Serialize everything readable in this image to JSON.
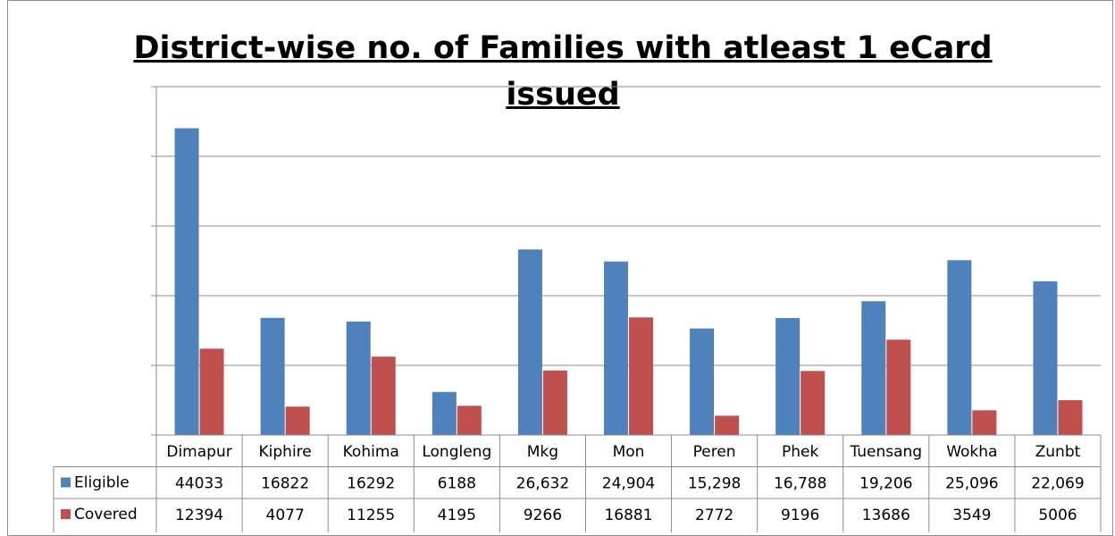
{
  "chart_data": {
    "type": "bar",
    "title": "District-wise no. of Families with atleast 1 eCard issued",
    "categories": [
      "Dimapur",
      "Kiphire",
      "Kohima",
      "Longleng",
      "Mkg",
      "Mon",
      "Peren",
      "Phek",
      "Tuensang",
      "Wokha",
      "Zunbt"
    ],
    "series": [
      {
        "name": "Eligible",
        "color": "#4f81bd",
        "values": [
          44033,
          16822,
          16292,
          6188,
          26632,
          24904,
          15298,
          16788,
          19206,
          25096,
          22069
        ],
        "labels": [
          "44033",
          "16822",
          "16292",
          "6188",
          "26,632",
          "24,904",
          "15,298",
          "16,788",
          "19,206",
          "25,096",
          "22,069"
        ]
      },
      {
        "name": "Covered",
        "color": "#c0504d",
        "values": [
          12394,
          4077,
          11255,
          4195,
          9266,
          16881,
          2772,
          9196,
          13686,
          3549,
          5006
        ],
        "labels": [
          "12394",
          "4077",
          "11255",
          "4195",
          "9266",
          "16881",
          "2772",
          "9196",
          "13686",
          "3549",
          "5006"
        ]
      }
    ],
    "ylim": [
      0,
      50000
    ],
    "grid": true,
    "y_tick_labels_visible": false,
    "legend": "data-table-left"
  }
}
